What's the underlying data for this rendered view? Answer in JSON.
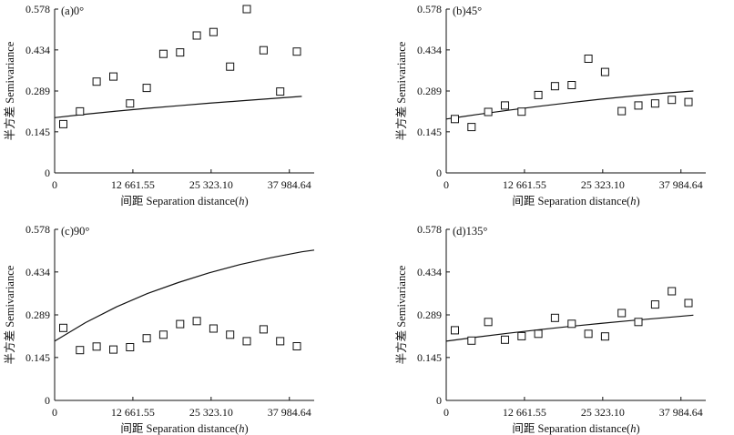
{
  "chart_data": [
    {
      "type": "scatter",
      "panel_label": "(a)0°",
      "xlabel": "间距 Separation distance(",
      "xlabel_var": "h",
      "xlabel_close": ")",
      "ylabel": "半方差 Semivariance",
      "xlim": [
        0,
        42000
      ],
      "ylim": [
        0,
        0.578
      ],
      "xticks": [
        0,
        12661.55,
        25323.1,
        37984.64
      ],
      "xtick_labels": [
        "0",
        "12 661.55",
        "25 323.10",
        "37 984.64"
      ],
      "yticks": [
        0,
        0.145,
        0.289,
        0.434,
        0.578
      ],
      "ytick_labels": [
        "0",
        "0.145",
        "0.289",
        "0.434",
        "0.578"
      ],
      "grid": false,
      "points": {
        "x": [
          1400,
          4100,
          6800,
          9500,
          12200,
          14900,
          17600,
          20300,
          23000,
          25700,
          28400,
          31100,
          33800,
          36500,
          39200
        ],
        "y": [
          0.172,
          0.217,
          0.322,
          0.34,
          0.245,
          0.3,
          0.42,
          0.425,
          0.485,
          0.497,
          0.375,
          0.578,
          0.433,
          0.287,
          0.428
        ]
      },
      "model_curve": {
        "x": [
          0,
          5000,
          10000,
          15000,
          20000,
          25000,
          30000,
          35000,
          40000
        ],
        "y": [
          0.195,
          0.207,
          0.218,
          0.228,
          0.237,
          0.246,
          0.254,
          0.262,
          0.27
        ]
      }
    },
    {
      "type": "scatter",
      "panel_label": "(b)45°",
      "xlabel": "间距 Separation distance(",
      "xlabel_var": "h",
      "xlabel_close": ")",
      "ylabel": "半方差 Semivariance",
      "xlim": [
        0,
        42000
      ],
      "ylim": [
        0,
        0.578
      ],
      "xticks": [
        0,
        12661.55,
        25323.1,
        37984.64
      ],
      "xtick_labels": [
        "0",
        "12 661.55",
        "25 323.10",
        "37 984.64"
      ],
      "yticks": [
        0,
        0.145,
        0.289,
        0.434,
        0.578
      ],
      "ytick_labels": [
        "0",
        "0.145",
        "0.289",
        "0.434",
        "0.578"
      ],
      "grid": false,
      "points": {
        "x": [
          1400,
          4100,
          6800,
          9500,
          12200,
          14900,
          17600,
          20300,
          23000,
          25700,
          28400,
          31100,
          33800,
          36500,
          39200
        ],
        "y": [
          0.19,
          0.162,
          0.215,
          0.238,
          0.216,
          0.275,
          0.306,
          0.31,
          0.403,
          0.356,
          0.218,
          0.238,
          0.245,
          0.258,
          0.25
        ]
      },
      "model_curve": {
        "x": [
          0,
          5000,
          10000,
          15000,
          20000,
          25000,
          30000,
          35000,
          40000
        ],
        "y": [
          0.19,
          0.206,
          0.221,
          0.235,
          0.248,
          0.26,
          0.271,
          0.281,
          0.289
        ]
      }
    },
    {
      "type": "scatter",
      "panel_label": "(c)90°",
      "xlabel": "间距 Separation distance(",
      "xlabel_var": "h",
      "xlabel_close": ")",
      "ylabel": "半方差 Semivariance",
      "xlim": [
        0,
        42000
      ],
      "ylim": [
        0,
        0.578
      ],
      "xticks": [
        0,
        12661.55,
        25323.1,
        37984.64
      ],
      "xtick_labels": [
        "0",
        "12 661.55",
        "25 323.10",
        "37 984.64"
      ],
      "yticks": [
        0,
        0.145,
        0.289,
        0.434,
        0.578
      ],
      "ytick_labels": [
        "0",
        "0.145",
        "0.289",
        "0.434",
        "0.578"
      ],
      "grid": false,
      "points": {
        "x": [
          1400,
          4100,
          6800,
          9500,
          12200,
          14900,
          17600,
          20300,
          23000,
          25700,
          28400,
          31100,
          33800,
          36500,
          39200
        ],
        "y": [
          0.245,
          0.17,
          0.182,
          0.172,
          0.18,
          0.21,
          0.222,
          0.258,
          0.268,
          0.243,
          0.222,
          0.2,
          0.24,
          0.2,
          0.183
        ]
      },
      "model_curve": {
        "x": [
          0,
          5000,
          10000,
          15000,
          20000,
          25000,
          30000,
          35000,
          40000,
          42000
        ],
        "y": [
          0.2,
          0.263,
          0.316,
          0.361,
          0.398,
          0.431,
          0.459,
          0.482,
          0.502,
          0.508
        ]
      }
    },
    {
      "type": "scatter",
      "panel_label": "(d)135°",
      "xlabel": "间距 Separation distance(",
      "xlabel_var": "h",
      "xlabel_close": ")",
      "ylabel": "半方差 Semivariance",
      "xlim": [
        0,
        42000
      ],
      "ylim": [
        0,
        0.578
      ],
      "xticks": [
        0,
        12661.55,
        25323.1,
        37984.64
      ],
      "xtick_labels": [
        "0",
        "12 661.55",
        "25 323.10",
        "37 984.64"
      ],
      "yticks": [
        0,
        0.145,
        0.289,
        0.434,
        0.578
      ],
      "ytick_labels": [
        "0",
        "0.145",
        "0.289",
        "0.434",
        "0.578"
      ],
      "grid": false,
      "points": {
        "x": [
          1400,
          4100,
          6800,
          9500,
          12200,
          14900,
          17600,
          20300,
          23000,
          25700,
          28400,
          31100,
          33800,
          36500,
          39200
        ],
        "y": [
          0.237,
          0.202,
          0.265,
          0.205,
          0.217,
          0.225,
          0.279,
          0.259,
          0.225,
          0.216,
          0.295,
          0.265,
          0.324,
          0.369,
          0.329
        ]
      },
      "model_curve": {
        "x": [
          0,
          5000,
          10000,
          15000,
          20000,
          25000,
          30000,
          35000,
          40000
        ],
        "y": [
          0.2,
          0.214,
          0.227,
          0.239,
          0.25,
          0.26,
          0.27,
          0.279,
          0.288
        ]
      }
    }
  ]
}
